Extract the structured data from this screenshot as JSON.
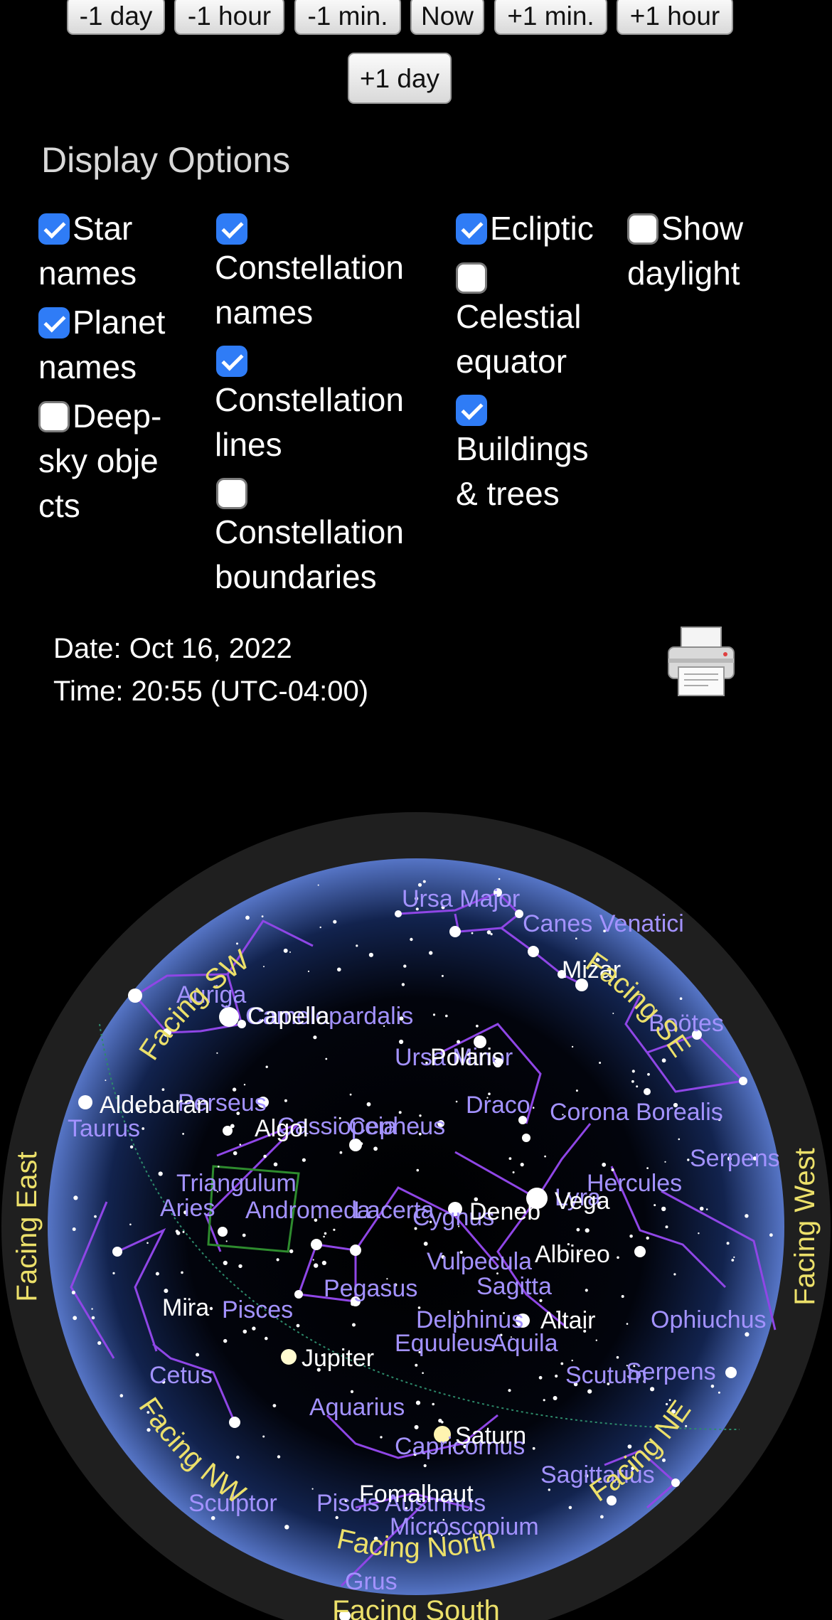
{
  "time_buttons": [
    "-1 day",
    "-1 hour",
    "-1 min.",
    "Now",
    "+1 min.",
    "+1 hour",
    "+1 day"
  ],
  "display_options": {
    "title": "Display Options",
    "items": [
      {
        "label": "Star names",
        "checked": true
      },
      {
        "label": "Planet names",
        "checked": true
      },
      {
        "label": "Deep-sky objects",
        "checked": false
      },
      {
        "label": "Constellation names",
        "checked": true
      },
      {
        "label": "Constellation lines",
        "checked": true
      },
      {
        "label": "Constellation boundaries",
        "checked": false
      },
      {
        "label": "Ecliptic",
        "checked": true
      },
      {
        "label": "Celestial equator",
        "checked": false
      },
      {
        "label": "Buildings & trees",
        "checked": true
      },
      {
        "label": "Show daylight",
        "checked": false
      }
    ]
  },
  "date_line": "Date: Oct 16, 2022",
  "time_line": "Time: 20:55 (UTC-04:00)",
  "printer_icon": "printer-icon",
  "sky_map": {
    "facing": {
      "north": "Facing North",
      "ne": "Facing NE",
      "nw": "Facing NW",
      "east": "Facing East",
      "west": "Facing West",
      "se": "Facing SE",
      "sw": "Facing SW",
      "south": "Facing South"
    },
    "constellations": [
      "Ursa Major",
      "Canes Venatici",
      "Auriga",
      "Camelopardalis",
      "Boötes",
      "Ursa Minor",
      "Perseus",
      "Taurus",
      "Draco",
      "Corona Borealis",
      "Cassiopeia",
      "Cepheus",
      "Serpens",
      "Triangulum",
      "Aries",
      "Andromeda",
      "Lacerta",
      "Cygnus",
      "Lyra",
      "Hercules",
      "Vulpecula",
      "Sagitta",
      "Pegasus",
      "Pisces",
      "Delphinus",
      "Equuleus",
      "Aquila",
      "Ophiuchus",
      "Cetus",
      "Scutum",
      "Serpens",
      "Aquarius",
      "Capricornus",
      "Sagittarius",
      "Sculptor",
      "Piscis Austrinus",
      "Microscopium",
      "Grus"
    ],
    "stars": [
      "Mizar",
      "Capella",
      "Polaris",
      "Aldebaran",
      "Algol",
      "Deneb",
      "Vega",
      "Albireo",
      "Mira",
      "Altair",
      "Fomalhaut"
    ],
    "planets": [
      "Jupiter",
      "Saturn"
    ]
  }
}
